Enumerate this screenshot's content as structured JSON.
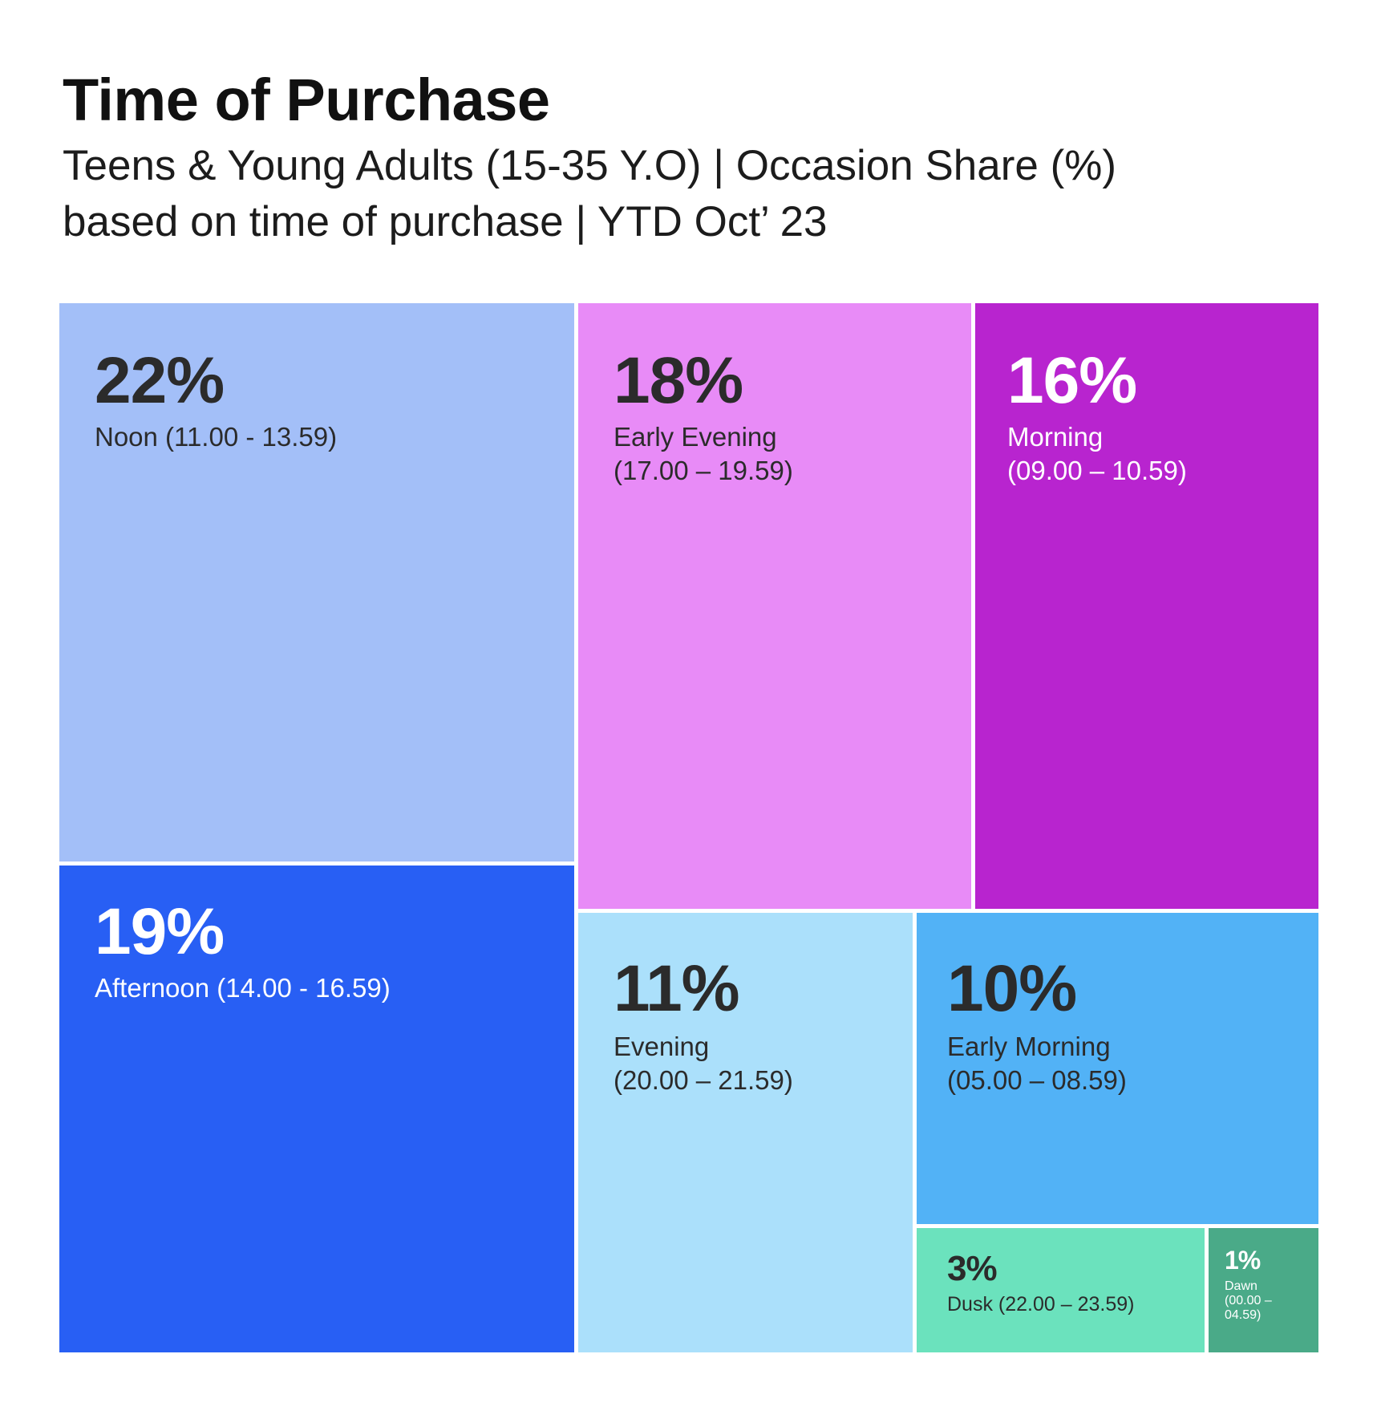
{
  "header": {
    "title": "Time of Purchase",
    "subtitle_line1": "Teens & Young Adults  (15-35 Y.O) |  Occasion Share (%)",
    "subtitle_line2": "based on time of purchase | YTD Oct’ 23"
  },
  "chart_data": {
    "type": "treemap",
    "title": "Time of Purchase",
    "subtitle": "Teens & Young Adults  (15-35 Y.O) |  Occasion Share (%) based on time of purchase | YTD Oct’ 23",
    "unit": "%",
    "items": [
      {
        "id": "noon",
        "value": 22,
        "value_label": "22%",
        "label": "Noon (11.00 - 13.59)",
        "color": "#a3bff8",
        "text_color": "#2b2b2b"
      },
      {
        "id": "afternoon",
        "value": 19,
        "value_label": "19%",
        "label": "Afternoon (14.00 - 16.59)",
        "color": "#285ff4",
        "text_color": "#ffffff"
      },
      {
        "id": "early-evening",
        "value": 18,
        "value_label": "18%",
        "label": "Early Evening\n(17.00 – 19.59)",
        "color": "#e88bf7",
        "text_color": "#2b2b2b"
      },
      {
        "id": "morning",
        "value": 16,
        "value_label": "16%",
        "label": "Morning\n(09.00 – 10.59)",
        "color": "#b824cf",
        "text_color": "#ffffff"
      },
      {
        "id": "evening",
        "value": 11,
        "value_label": "11%",
        "label": "Evening\n(20.00 – 21.59)",
        "color": "#abe0fb",
        "text_color": "#2b2b2b"
      },
      {
        "id": "early-morning",
        "value": 10,
        "value_label": "10%",
        "label": "Early Morning\n(05.00 – 08.59)",
        "color": "#52b2f6",
        "text_color": "#2b2b2b"
      },
      {
        "id": "dusk",
        "value": 3,
        "value_label": "3%",
        "label": "Dusk (22.00 – 23.59)",
        "color": "#6be2bd",
        "text_color": "#2b2b2b"
      },
      {
        "id": "dawn",
        "value": 1,
        "value_label": "1%",
        "label": "Dawn\n(00.00 –\n04.59)",
        "color": "#4aaa88",
        "text_color": "#ffffff"
      }
    ]
  }
}
